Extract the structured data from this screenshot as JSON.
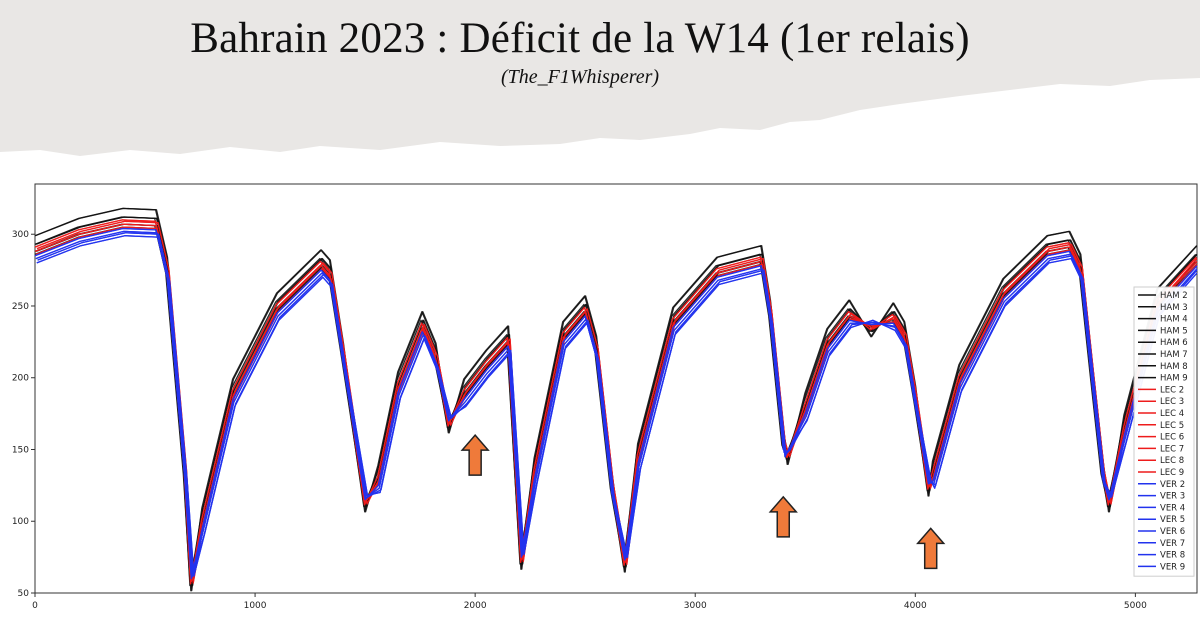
{
  "header": {
    "title": "Bahrain 2023 : Déficit de la W14 (1er relais)",
    "subtitle": "(The_F1Whisperer)"
  },
  "colors": {
    "banner": "#e9e7e5",
    "HAM": "#111111",
    "LEC": "#ee1c1c",
    "VER": "#2233ee",
    "arrow_fill": "#ef7a3a",
    "arrow_stroke": "#222222"
  },
  "chart_data": {
    "type": "line",
    "title": "",
    "xlabel": "",
    "ylabel": "",
    "xlim": [
      0,
      5280
    ],
    "ylim": [
      50,
      335
    ],
    "xticks": [
      0,
      1000,
      2000,
      3000,
      4000,
      5000
    ],
    "yticks": [
      50,
      100,
      150,
      200,
      250,
      300
    ],
    "legend_position": "right",
    "base_profile": {
      "x": [
        0,
        200,
        400,
        550,
        600,
        680,
        710,
        760,
        900,
        1100,
        1300,
        1340,
        1400,
        1500,
        1560,
        1650,
        1760,
        1820,
        1880,
        1950,
        2050,
        2150,
        2210,
        2270,
        2400,
        2500,
        2550,
        2620,
        2680,
        2740,
        2900,
        3100,
        3300,
        3340,
        3400,
        3420,
        3500,
        3600,
        3700,
        3800,
        3900,
        3950,
        4000,
        4060,
        4080,
        4200,
        4400,
        4600,
        4700,
        4750,
        4800,
        4850,
        4880,
        4950,
        5100,
        5280
      ],
      "y": [
        285,
        297,
        304,
        303,
        270,
        130,
        60,
        95,
        185,
        245,
        275,
        268,
        210,
        115,
        125,
        190,
        232,
        210,
        170,
        185,
        205,
        222,
        75,
        130,
        225,
        243,
        215,
        120,
        73,
        140,
        235,
        270,
        278,
        240,
        150,
        148,
        175,
        220,
        240,
        237,
        238,
        225,
        180,
        126,
        128,
        195,
        255,
        285,
        288,
        272,
        200,
        130,
        115,
        160,
        248,
        278
      ]
    },
    "series_groups": [
      {
        "driver": "HAM",
        "laps": [
          "HAM 2",
          "HAM 3",
          "HAM 4",
          "HAM 5",
          "HAM 6",
          "HAM 7",
          "HAM 8",
          "HAM 9"
        ],
        "dy": [
          8,
          1,
          14,
          8,
          3,
          14,
          8,
          3
        ]
      },
      {
        "driver": "LEC",
        "laps": [
          "LEC 2",
          "LEC 3",
          "LEC 4",
          "LEC 5",
          "LEC 6",
          "LEC 7",
          "LEC 8",
          "LEC 9"
        ],
        "dy": [
          6,
          3,
          1,
          5,
          6,
          3,
          1,
          5
        ]
      },
      {
        "driver": "VER",
        "laps": [
          "VER 2",
          "VER 3",
          "VER 4",
          "VER 5",
          "VER 6",
          "VER 7",
          "VER 8",
          "VER 9"
        ],
        "dy": [
          0,
          -2,
          -5,
          -3,
          0,
          -2,
          -5,
          -3
        ]
      }
    ],
    "annotations": [
      {
        "type": "up-arrow",
        "x": 2000,
        "y": 160
      },
      {
        "type": "up-arrow",
        "x": 3400,
        "y": 117
      },
      {
        "type": "up-arrow",
        "x": 4070,
        "y": 95
      }
    ]
  }
}
